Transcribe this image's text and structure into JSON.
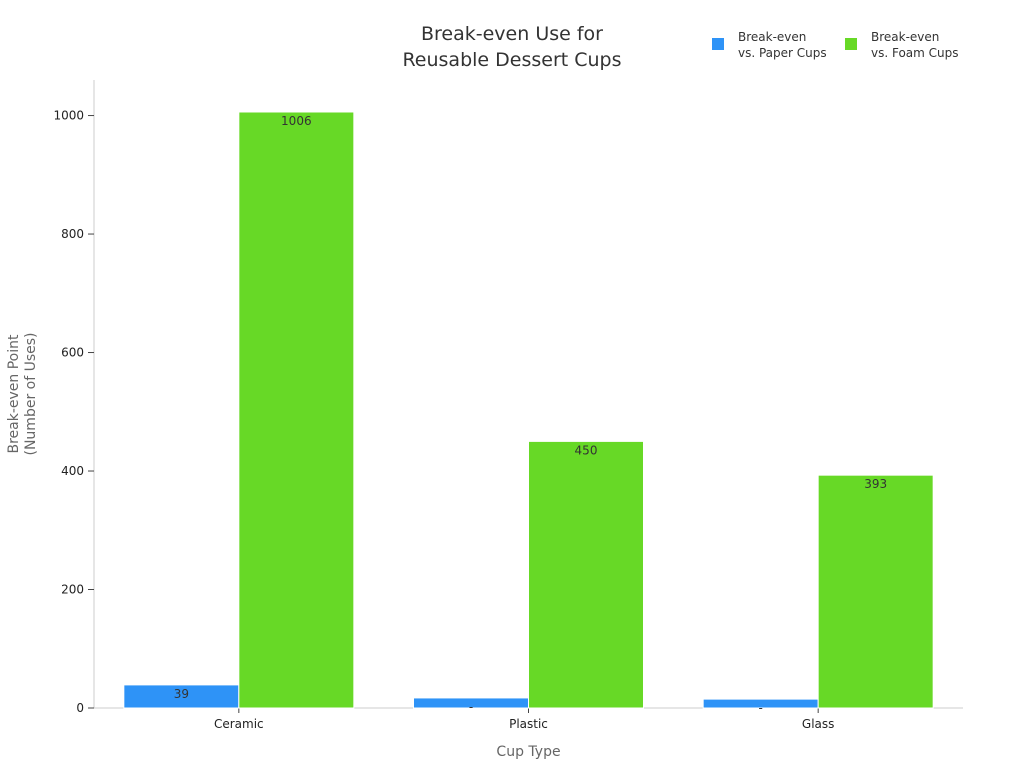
{
  "chart_data": {
    "type": "bar",
    "title": "Break-even Use for\nReusable Dessert Cups",
    "xlabel": "Cup Type",
    "ylabel": "Break-even Point\n(Number of Uses)",
    "categories": [
      "Ceramic",
      "Plastic",
      "Glass"
    ],
    "series": [
      {
        "name": "Break-even\nvs. Paper Cups",
        "color": "#2e93f7",
        "values": [
          39,
          17,
          15
        ],
        "labels": [
          "39",
          "-",
          "-"
        ]
      },
      {
        "name": "Break-even\nvs. Foam Cups",
        "color": "#67d926",
        "values": [
          1006,
          450,
          393
        ],
        "labels": [
          "1006",
          "450",
          "393"
        ]
      }
    ],
    "ylim": [
      0,
      1060
    ],
    "yticks": [
      0,
      200,
      400,
      600,
      800,
      1000
    ],
    "legend_position": "top-right",
    "grid": false
  }
}
